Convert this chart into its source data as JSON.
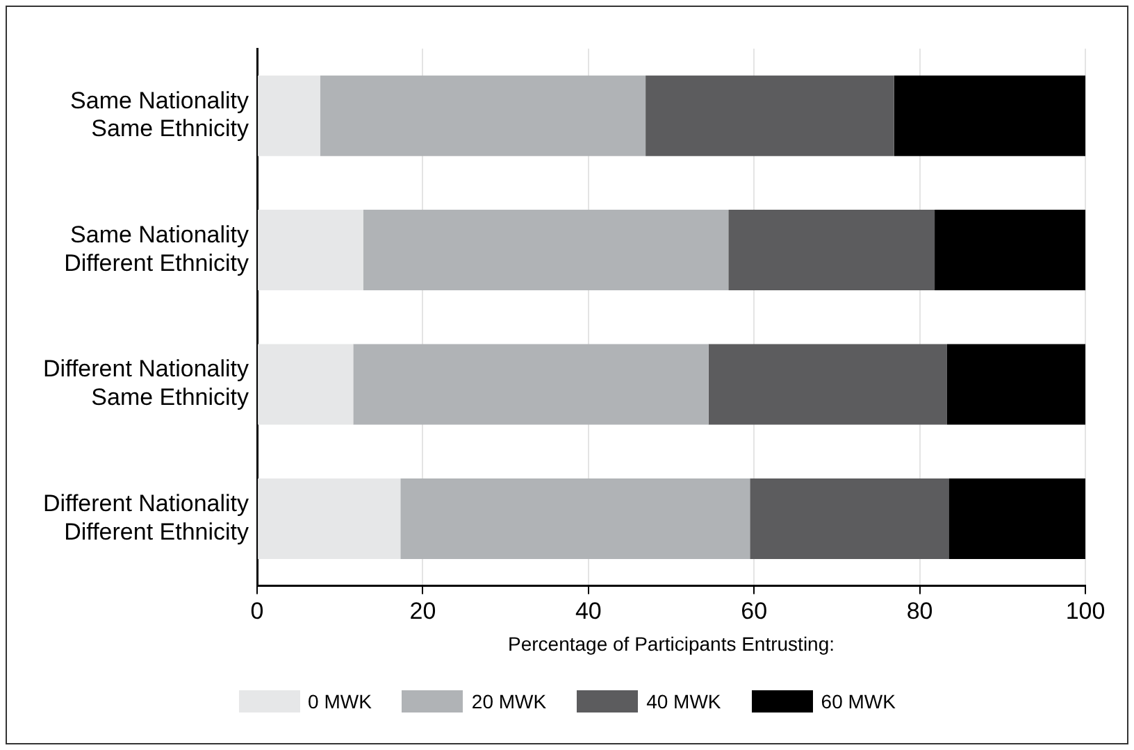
{
  "chart_data": {
    "type": "bar",
    "orientation": "horizontal",
    "stacked": true,
    "categories": [
      "Same Nationality\nSame Ethnicity",
      "Same Nationality\nDifferent Ethnicity",
      "Different Nationality\nSame Ethnicity",
      "Different Nationality\nDifferent Ethnicity"
    ],
    "series": [
      {
        "name": "0 MWK",
        "color": "#e6e7e8",
        "values": [
          7.6,
          12.8,
          11.6,
          17.3
        ]
      },
      {
        "name": "20 MWK",
        "color": "#b0b3b6",
        "values": [
          39.3,
          44.1,
          42.9,
          42.2
        ]
      },
      {
        "name": "40 MWK",
        "color": "#5c5c5e",
        "values": [
          30.0,
          24.9,
          28.8,
          24.0
        ]
      },
      {
        "name": "60 MWK",
        "color": "#000000",
        "values": [
          23.1,
          18.2,
          16.7,
          16.5
        ]
      }
    ],
    "xlabel": "Percentage of Participants Entrusting:",
    "xlim": [
      0,
      100
    ],
    "xticks": [
      0,
      20,
      40,
      60,
      80,
      100
    ],
    "grid": "x",
    "legend": "bottom"
  }
}
